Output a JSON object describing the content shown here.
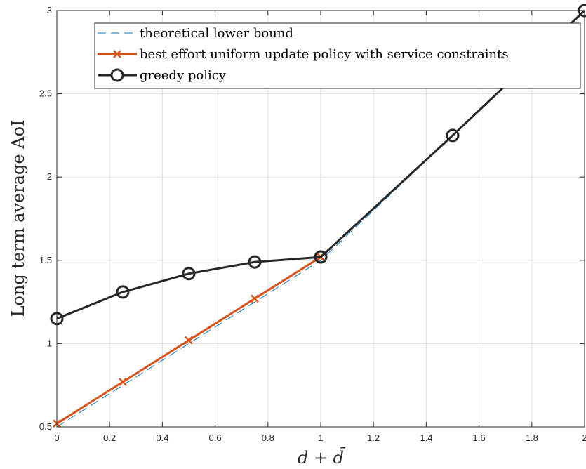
{
  "chart_data": {
    "type": "line",
    "title": "",
    "xlabel": "d + d̄",
    "ylabel": "Long term average AoI",
    "xlim": [
      0,
      2
    ],
    "ylim": [
      0.5,
      3
    ],
    "grid": true,
    "legend_placement": "top-right",
    "x_ticks": [
      "0",
      "0.2",
      "0.4",
      "0.6",
      "0.8",
      "1",
      "1.2",
      "1.4",
      "1.6",
      "1.8",
      "2"
    ],
    "y_ticks": [
      "0.5",
      "1",
      "1.5",
      "2",
      "2.5",
      "3"
    ],
    "series": [
      {
        "name": "theoretical lower bound",
        "color": "#0072BD",
        "style": "dashed",
        "marker": "none",
        "x": [
          0,
          1,
          1.5,
          2
        ],
        "y": [
          0.5,
          1.5,
          2.25,
          3
        ]
      },
      {
        "name": "best effort uniform update policy with service constraints",
        "color": "#D95319",
        "style": "solid",
        "marker": "x",
        "x": [
          0,
          0.25,
          0.5,
          0.75,
          1
        ],
        "y": [
          0.52,
          0.77,
          1.02,
          1.27,
          1.52
        ]
      },
      {
        "name": "greedy policy",
        "color": "#262626",
        "style": "solid",
        "marker": "circle",
        "x": [
          0,
          0.25,
          0.5,
          0.75,
          1,
          1.5,
          2
        ],
        "y": [
          1.15,
          1.31,
          1.42,
          1.49,
          1.52,
          2.25,
          3
        ]
      }
    ]
  }
}
